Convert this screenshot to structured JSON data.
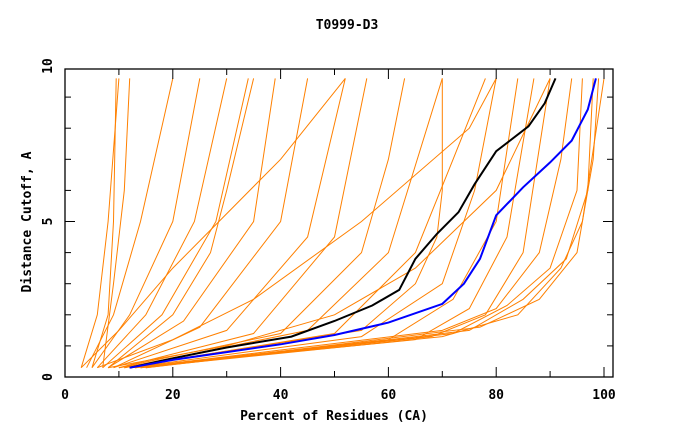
{
  "chart_data": {
    "type": "line",
    "title": "T0999-D3",
    "xlabel": "Percent of Residues (CA)",
    "ylabel": "Distance Cutoff, A",
    "xlim": [
      0,
      100
    ],
    "ylim": [
      0,
      10
    ],
    "xticks": [
      "0",
      "20",
      "40",
      "60",
      "80",
      "100"
    ],
    "yticks": [
      "0",
      "5",
      "10"
    ],
    "grid": false,
    "colors": {
      "background_models": "#ff8000",
      "highlight_1": "#000000",
      "highlight_2": "#0000ff"
    },
    "background_series": [
      [
        [
          3,
          0.3
        ],
        [
          6,
          2
        ],
        [
          8,
          5
        ],
        [
          10,
          9.6
        ]
      ],
      [
        [
          5,
          0.3
        ],
        [
          8,
          2
        ],
        [
          9,
          5
        ],
        [
          9.5,
          9.6
        ]
      ],
      [
        [
          7,
          0.3
        ],
        [
          9,
          3
        ],
        [
          11,
          6
        ],
        [
          12,
          9.6
        ]
      ],
      [
        [
          4,
          0.3
        ],
        [
          9,
          2
        ],
        [
          14,
          5
        ],
        [
          20,
          9.6
        ]
      ],
      [
        [
          5,
          0.3
        ],
        [
          12,
          2
        ],
        [
          20,
          5
        ],
        [
          25,
          9.6
        ]
      ],
      [
        [
          6,
          0.3
        ],
        [
          15,
          2
        ],
        [
          24,
          5
        ],
        [
          30,
          9.6
        ]
      ],
      [
        [
          7,
          0.3
        ],
        [
          18,
          2
        ],
        [
          28,
          5
        ],
        [
          34,
          9.6
        ]
      ],
      [
        [
          8,
          0.3
        ],
        [
          20,
          2
        ],
        [
          27,
          4
        ],
        [
          30,
          6
        ],
        [
          35,
          9.6
        ]
      ],
      [
        [
          8,
          0.3
        ],
        [
          22,
          1.8
        ],
        [
          35,
          5
        ],
        [
          39,
          9.6
        ]
      ],
      [
        [
          9,
          0.3
        ],
        [
          25,
          1.6
        ],
        [
          40,
          5
        ],
        [
          45,
          9.6
        ]
      ],
      [
        [
          9,
          0.3
        ],
        [
          30,
          1.5
        ],
        [
          45,
          4.5
        ],
        [
          52,
          9.6
        ]
      ],
      [
        [
          10,
          0.3
        ],
        [
          35,
          1.4
        ],
        [
          50,
          4.5
        ],
        [
          56,
          9.6
        ]
      ],
      [
        [
          10,
          0.3
        ],
        [
          40,
          1.4
        ],
        [
          55,
          4
        ],
        [
          60,
          7
        ],
        [
          63,
          9.6
        ]
      ],
      [
        [
          11,
          0.3
        ],
        [
          45,
          1.5
        ],
        [
          60,
          4
        ],
        [
          70,
          9.6
        ]
      ],
      [
        [
          11,
          0.3
        ],
        [
          50,
          1.4
        ],
        [
          65,
          4
        ],
        [
          72,
          7
        ],
        [
          78,
          9.6
        ]
      ],
      [
        [
          12,
          0.3
        ],
        [
          55,
          1.3
        ],
        [
          70,
          3
        ],
        [
          76,
          6
        ],
        [
          80,
          9.6
        ]
      ],
      [
        [
          12,
          0.3
        ],
        [
          60,
          1.2
        ],
        [
          72,
          2.5
        ],
        [
          80,
          5
        ],
        [
          84,
          9.6
        ]
      ],
      [
        [
          12,
          0.3
        ],
        [
          65,
          1.2
        ],
        [
          75,
          2.2
        ],
        [
          82,
          4.5
        ],
        [
          87,
          9.6
        ]
      ],
      [
        [
          13,
          0.3
        ],
        [
          68,
          1.3
        ],
        [
          78,
          2
        ],
        [
          85,
          4
        ],
        [
          90,
          9.6
        ]
      ],
      [
        [
          13,
          0.3
        ],
        [
          70,
          1.5
        ],
        [
          80,
          2.2
        ],
        [
          88,
          4
        ],
        [
          92,
          7
        ],
        [
          94,
          9.6
        ]
      ],
      [
        [
          14,
          0.3
        ],
        [
          72,
          1.4
        ],
        [
          82,
          2.3
        ],
        [
          90,
          3.5
        ],
        [
          95,
          6
        ],
        [
          96,
          9.6
        ]
      ],
      [
        [
          15,
          0.3
        ],
        [
          75,
          1.5
        ],
        [
          85,
          2.5
        ],
        [
          93,
          3.8
        ],
        [
          97,
          6
        ],
        [
          98,
          9.6
        ]
      ],
      [
        [
          15,
          0.3
        ],
        [
          77,
          1.6
        ],
        [
          88,
          2.5
        ],
        [
          95,
          4
        ],
        [
          98,
          7
        ],
        [
          99,
          9.6
        ]
      ],
      [
        [
          14,
          0.3
        ],
        [
          70,
          1.3
        ],
        [
          84,
          2.0
        ],
        [
          92,
          3.5
        ],
        [
          96,
          5
        ],
        [
          100,
          9.6
        ]
      ],
      [
        [
          10,
          0.3
        ],
        [
          55,
          1.5
        ],
        [
          65,
          3
        ],
        [
          69,
          4.5
        ],
        [
          70,
          6
        ],
        [
          70,
          9.6
        ]
      ],
      [
        [
          3,
          0.3
        ],
        [
          10,
          1.5
        ],
        [
          20,
          3.5
        ],
        [
          40,
          7
        ],
        [
          52,
          9.6
        ]
      ],
      [
        [
          6,
          0.3
        ],
        [
          20,
          1.2
        ],
        [
          35,
          2.5
        ],
        [
          55,
          5
        ],
        [
          75,
          8
        ],
        [
          80,
          9.6
        ]
      ],
      [
        [
          8,
          0.3
        ],
        [
          30,
          1.0
        ],
        [
          50,
          2
        ],
        [
          65,
          3.5
        ],
        [
          80,
          6
        ],
        [
          90,
          9.6
        ]
      ]
    ],
    "highlight_series": [
      {
        "color": "#000000",
        "points": [
          [
            12,
            0.3
          ],
          [
            20,
            0.6
          ],
          [
            30,
            0.95
          ],
          [
            42,
            1.3
          ],
          [
            50,
            1.8
          ],
          [
            57,
            2.3
          ],
          [
            62,
            2.8
          ],
          [
            65,
            3.8
          ],
          [
            69,
            4.6
          ],
          [
            73,
            5.3
          ],
          [
            76,
            6.2
          ],
          [
            80,
            7.26
          ],
          [
            86,
            8.06
          ],
          [
            89,
            8.8
          ],
          [
            91,
            9.6
          ]
        ]
      },
      {
        "color": "#0000ff",
        "points": [
          [
            12,
            0.3
          ],
          [
            20,
            0.55
          ],
          [
            30,
            0.8
          ],
          [
            40,
            1.05
          ],
          [
            50,
            1.35
          ],
          [
            60,
            1.75
          ],
          [
            70,
            2.35
          ],
          [
            74,
            3.0
          ],
          [
            77,
            3.8
          ],
          [
            80,
            5.2
          ],
          [
            85,
            6.1
          ],
          [
            90,
            6.9
          ],
          [
            94,
            7.6
          ],
          [
            97,
            8.6
          ],
          [
            98.5,
            9.6
          ]
        ]
      }
    ]
  }
}
